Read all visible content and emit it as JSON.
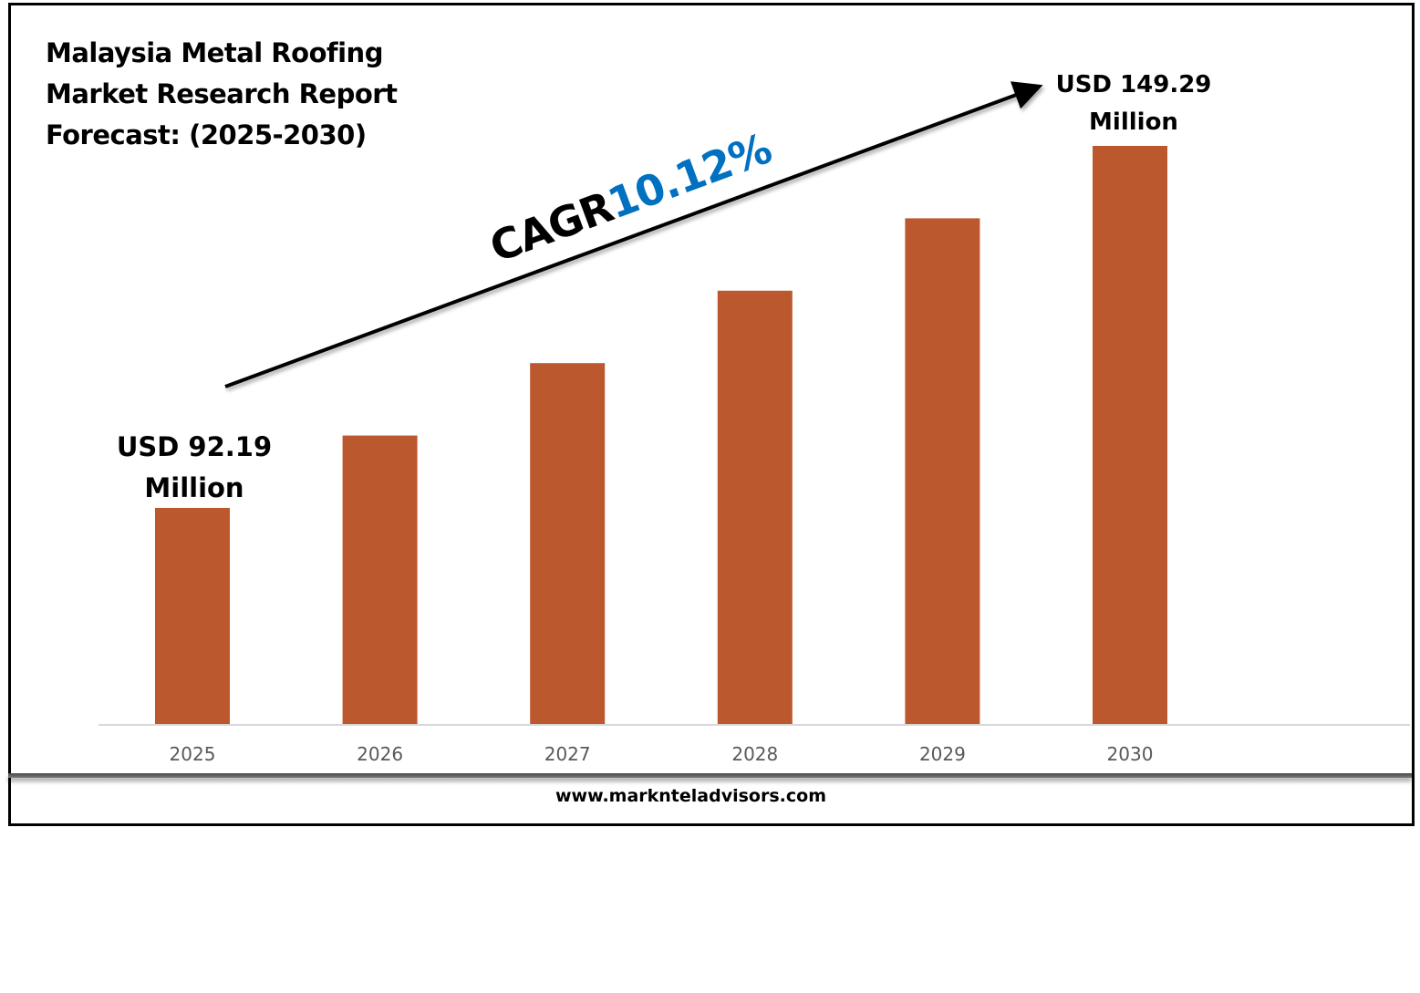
{
  "title": {
    "lines": [
      "Malaysia Metal Roofing",
      "Market Research Report",
      "Forecast: (2025-2030)"
    ]
  },
  "annotations": {
    "start_value": [
      "USD 92.19",
      "Million"
    ],
    "end_value": [
      "USD 149.29",
      "Million"
    ],
    "cagr_label": "CAGR",
    "cagr_value": "10.12%"
  },
  "footer": {
    "website": "www.marknteladvisors.com"
  },
  "colors": {
    "bar": "#BC582E",
    "cagr": "#0070C0",
    "axis": "#D9D9D9",
    "tick": "#595959"
  },
  "chart_data": {
    "type": "bar",
    "title": "Malaysia Metal Roofing Market Research Report Forecast: (2025-2030)",
    "xlabel": "",
    "ylabel": "",
    "unit": "USD Million",
    "categories": [
      "2025",
      "2026",
      "2027",
      "2028",
      "2029",
      "2030"
    ],
    "values": [
      92.19,
      103.61,
      115.03,
      126.45,
      137.87,
      149.29
    ],
    "ylim": [
      58.1,
      149.29
    ],
    "grid": false,
    "legend": "none",
    "data_labels": {
      "2025": "USD 92.19 Million",
      "2030": "USD 149.29 Million"
    },
    "annotation": "CAGR 10.12%"
  }
}
